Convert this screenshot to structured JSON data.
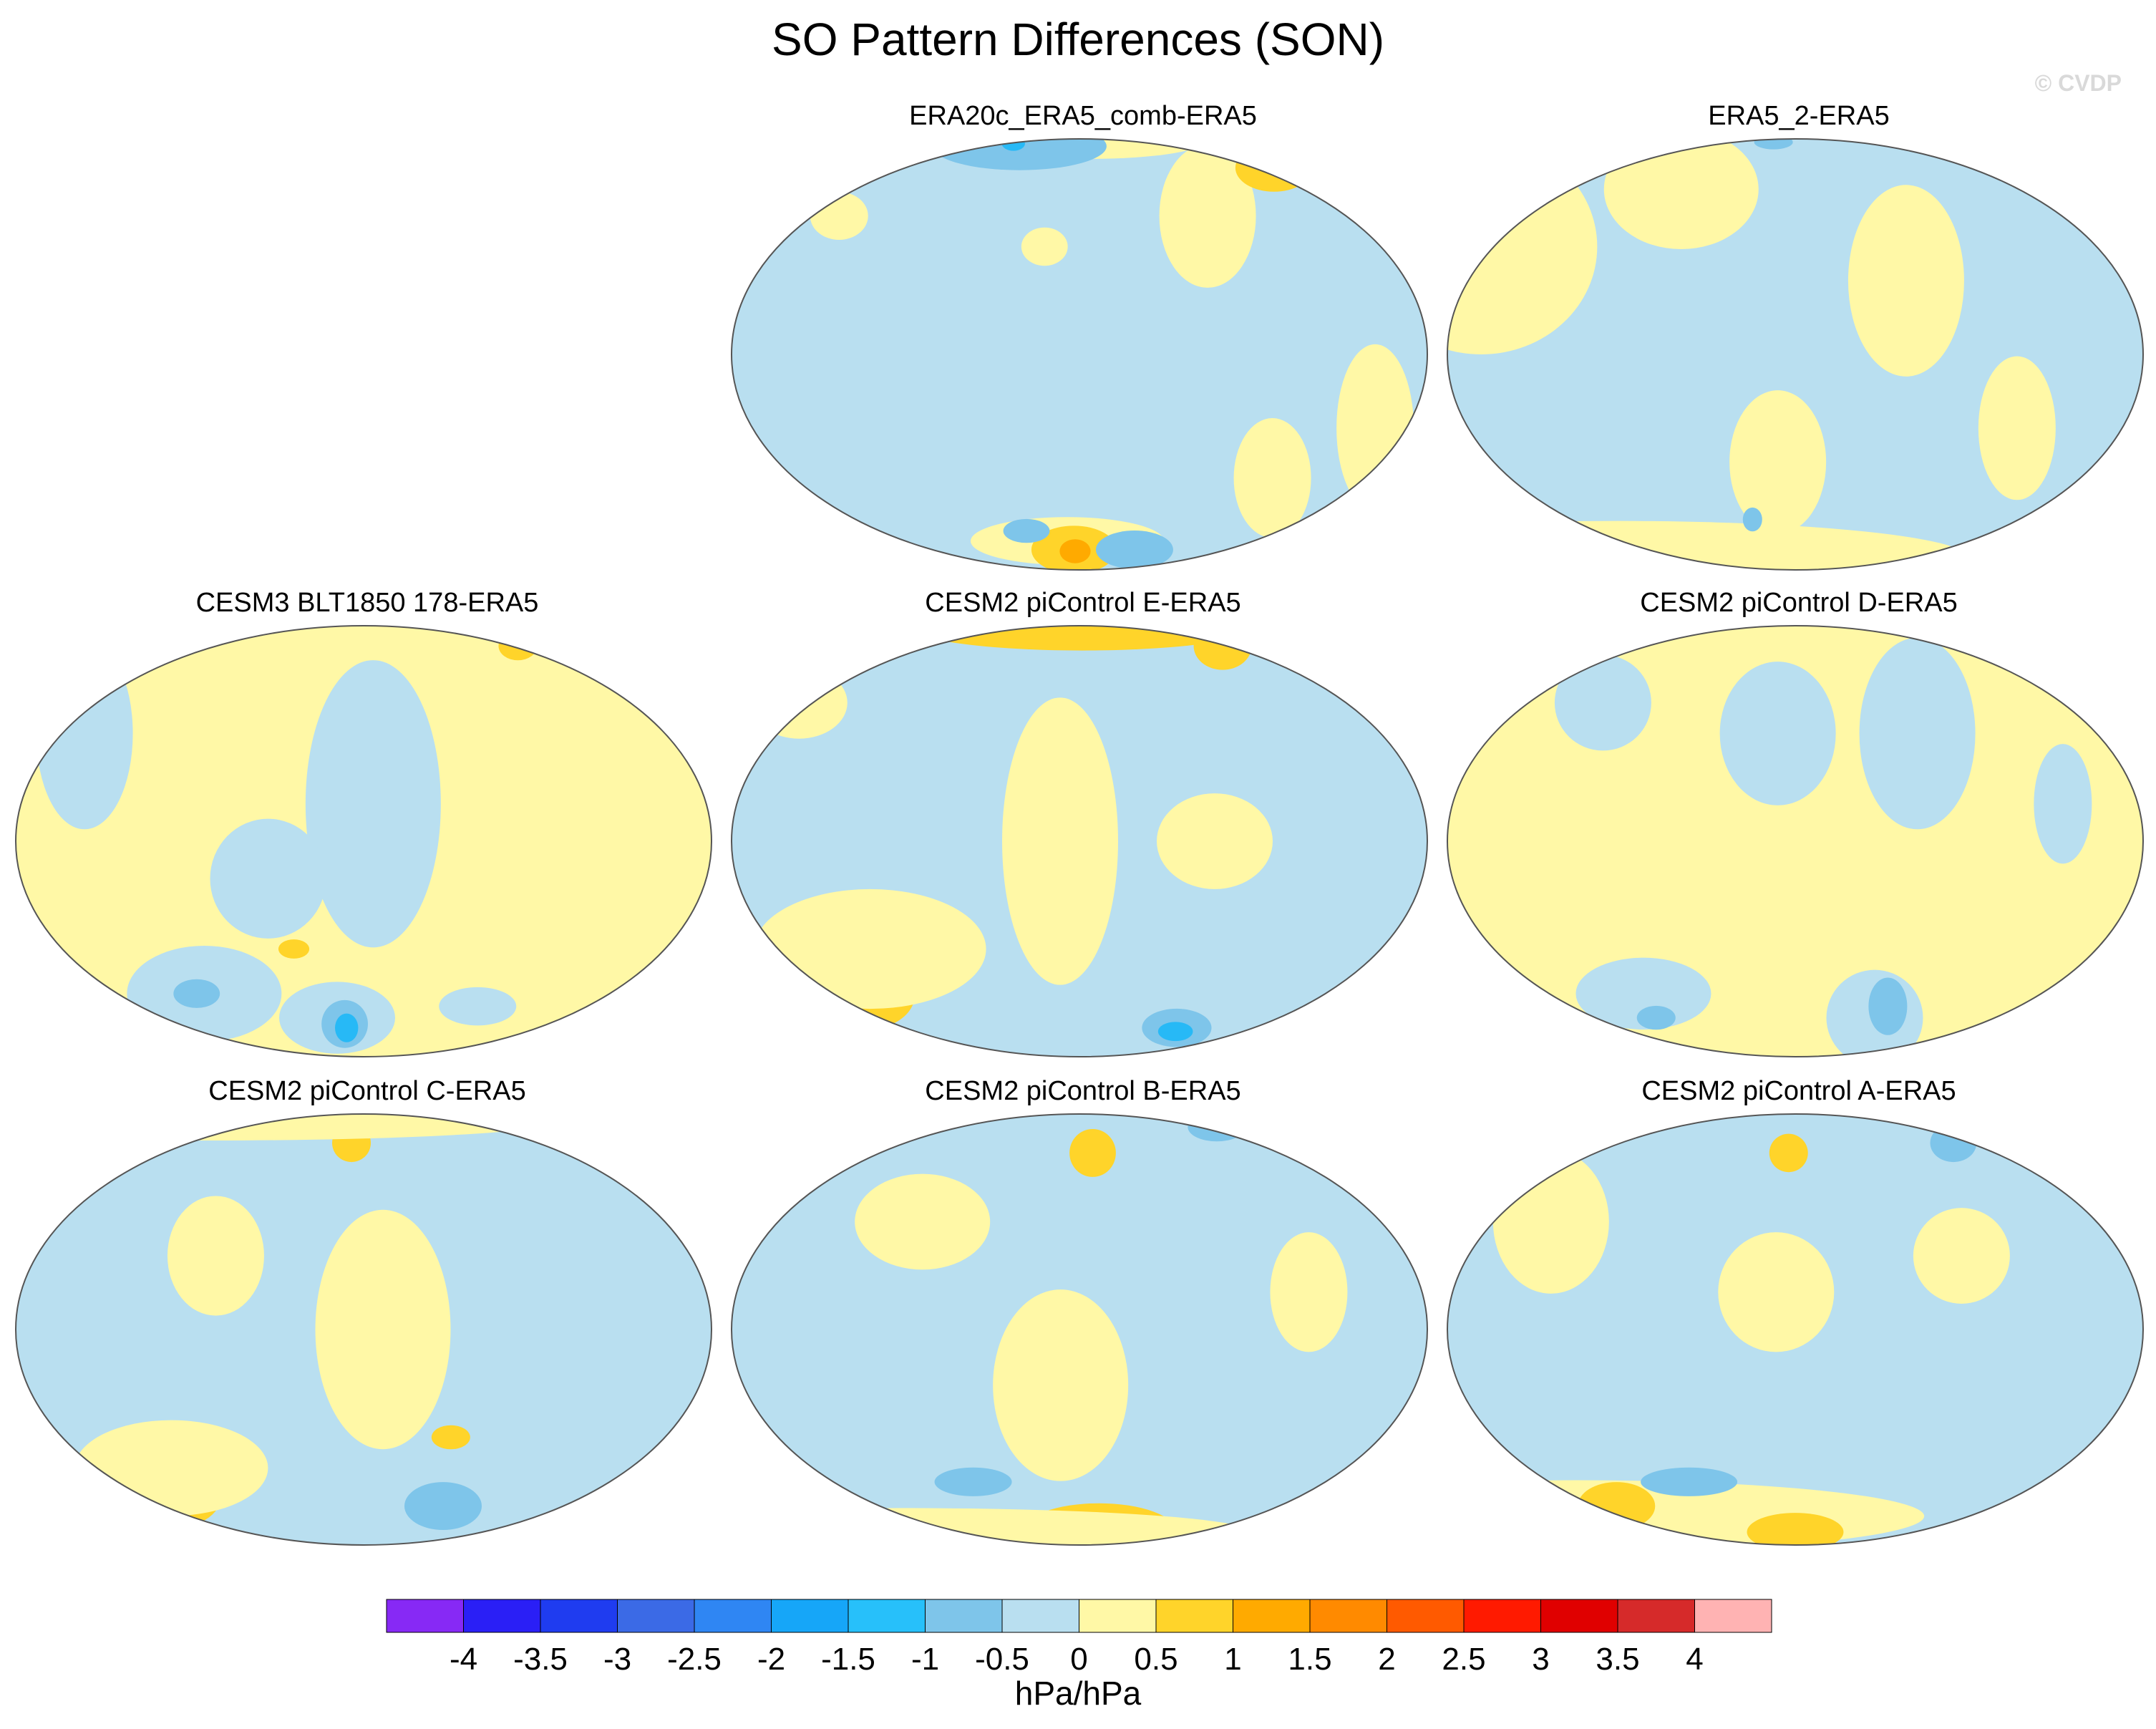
{
  "title": "SO Pattern Differences (SON)",
  "watermark": "© CVDP",
  "panels": [
    {
      "title": "ERA20c_ERA5_comb-ERA5",
      "row": 0,
      "col": 1,
      "base": "#b9dff0",
      "blobs": [
        {
          "lon": 170,
          "lat": -60,
          "rx": 50,
          "ry": 10,
          "c": "#fff8a6"
        },
        {
          "lon": 175,
          "lat": -65,
          "rx": 22,
          "ry": 10,
          "c": "#ffd42a"
        },
        {
          "lon": 176,
          "lat": -66,
          "rx": 8,
          "ry": 5,
          "c": "#ffaa00"
        },
        {
          "lon": -20,
          "lat": -20,
          "rx": 20,
          "ry": 35,
          "c": "#fff8a6"
        },
        {
          "lon": -100,
          "lat": 40,
          "rx": 25,
          "ry": 30,
          "c": "#fff8a6"
        },
        {
          "lon": -20,
          "lat": 60,
          "rx": 20,
          "ry": 10,
          "c": "#ffd42a"
        },
        {
          "lon": -160,
          "lat": 85,
          "rx": 60,
          "ry": 8,
          "c": "#fff8a6"
        },
        {
          "lon": 110,
          "lat": 75,
          "rx": 45,
          "ry": 10,
          "c": "#7ec5ea"
        },
        {
          "lon": 95,
          "lat": 78,
          "rx": 6,
          "ry": 3,
          "c": "#27b9f6"
        },
        {
          "lon": -130,
          "lat": -65,
          "rx": 20,
          "ry": 8,
          "c": "#7ec5ea"
        },
        {
          "lon": 140,
          "lat": -55,
          "rx": 12,
          "ry": 5,
          "c": "#7ec5ea"
        },
        {
          "lon": 30,
          "lat": 40,
          "rx": 15,
          "ry": 10,
          "c": "#fff8a6"
        },
        {
          "lon": 160,
          "lat": 30,
          "rx": 12,
          "ry": 8,
          "c": "#fff8a6"
        },
        {
          "lon": -65,
          "lat": -35,
          "rx": 20,
          "ry": 25,
          "c": "#fff8a6"
        }
      ]
    },
    {
      "title": "ERA5_2-ERA5",
      "row": 0,
      "col": 2,
      "base": "#b9dff0",
      "blobs": [
        {
          "lon": 0,
          "lat": 30,
          "rx": 60,
          "ry": 45,
          "c": "#fff8a6"
        },
        {
          "lon": -120,
          "lat": 20,
          "rx": 30,
          "ry": 40,
          "c": "#fff8a6"
        },
        {
          "lon": 170,
          "lat": -30,
          "rx": 25,
          "ry": 30,
          "c": "#fff8a6"
        },
        {
          "lon": 0,
          "lat": -70,
          "rx": 180,
          "ry": 15,
          "c": "#fff8a6"
        },
        {
          "lon": 100,
          "lat": 50,
          "rx": 40,
          "ry": 25,
          "c": "#fff8a6"
        },
        {
          "lon": 150,
          "lat": -50,
          "rx": 5,
          "ry": 5,
          "c": "#7ec5ea"
        },
        {
          "lon": 150,
          "lat": 80,
          "rx": 10,
          "ry": 3,
          "c": "#7ec5ea"
        },
        {
          "lon": -60,
          "lat": -20,
          "rx": 20,
          "ry": 30,
          "c": "#fff8a6"
        }
      ]
    },
    {
      "title": "CESM3 BLT1850 178-ERA5",
      "row": 1,
      "col": 0,
      "base": "#fff8a6",
      "blobs": [
        {
          "lon": -175,
          "lat": 10,
          "rx": 35,
          "ry": 60,
          "c": "#b9dff0"
        },
        {
          "lon": 20,
          "lat": 30,
          "rx": 25,
          "ry": 40,
          "c": "#b9dff0"
        },
        {
          "lon": 75,
          "lat": -45,
          "rx": 40,
          "ry": 20,
          "c": "#b9dff0"
        },
        {
          "lon": 130,
          "lat": -10,
          "rx": 30,
          "ry": 25,
          "c": "#b9dff0"
        },
        {
          "lon": 160,
          "lat": -55,
          "rx": 30,
          "ry": 15,
          "c": "#b9dff0"
        },
        {
          "lon": 165,
          "lat": -58,
          "rx": 12,
          "ry": 10,
          "c": "#7ec5ea"
        },
        {
          "lon": 166,
          "lat": -60,
          "rx": 6,
          "ry": 6,
          "c": "#27b9f6"
        },
        {
          "lon": 70,
          "lat": -45,
          "rx": 12,
          "ry": 6,
          "c": "#7ec5ea"
        },
        {
          "lon": -40,
          "lat": 65,
          "rx": 10,
          "ry": 6,
          "c": "#ffd42a"
        },
        {
          "lon": 140,
          "lat": -30,
          "rx": 8,
          "ry": 4,
          "c": "#ffd42a"
        },
        {
          "lon": -100,
          "lat": -50,
          "rx": 20,
          "ry": 8,
          "c": "#b9dff0"
        }
      ]
    },
    {
      "title": "CESM2 piControl E-ERA5",
      "row": 1,
      "col": 1,
      "base": "#b9dff0",
      "blobs": [
        {
          "lon": -175,
          "lat": 85,
          "rx": 90,
          "ry": 10,
          "c": "#ffd42a"
        },
        {
          "lon": -50,
          "lat": 65,
          "rx": 15,
          "ry": 10,
          "c": "#ffd42a"
        },
        {
          "lon": 170,
          "lat": 0,
          "rx": 30,
          "ry": 60,
          "c": "#fff8a6"
        },
        {
          "lon": 40,
          "lat": -45,
          "rx": 25,
          "ry": 15,
          "c": "#ffd42a"
        },
        {
          "lon": 60,
          "lat": -30,
          "rx": 60,
          "ry": 25,
          "c": "#fff8a6"
        },
        {
          "lon": 5,
          "lat": 40,
          "rx": 25,
          "ry": 15,
          "c": "#fff8a6"
        },
        {
          "lon": -100,
          "lat": -60,
          "rx": 18,
          "ry": 8,
          "c": "#7ec5ea"
        },
        {
          "lon": -98,
          "lat": -62,
          "rx": 9,
          "ry": 4,
          "c": "#27b9f6"
        },
        {
          "lon": -110,
          "lat": 0,
          "rx": 30,
          "ry": 20,
          "c": "#fff8a6"
        }
      ]
    },
    {
      "title": "CESM2 piControl D-ERA5",
      "row": 1,
      "col": 2,
      "base": "#fff8a6",
      "blobs": [
        {
          "lon": 170,
          "lat": 30,
          "rx": 30,
          "ry": 30,
          "c": "#b9dff0"
        },
        {
          "lon": -110,
          "lat": 30,
          "rx": 30,
          "ry": 40,
          "c": "#b9dff0"
        },
        {
          "lon": 60,
          "lat": 40,
          "rx": 25,
          "ry": 20,
          "c": "#b9dff0"
        },
        {
          "lon": 80,
          "lat": -45,
          "rx": 35,
          "ry": 15,
          "c": "#b9dff0"
        },
        {
          "lon": -120,
          "lat": -55,
          "rx": 25,
          "ry": 20,
          "c": "#b9dff0"
        },
        {
          "lon": -115,
          "lat": -50,
          "rx": 10,
          "ry": 12,
          "c": "#7ec5ea"
        },
        {
          "lon": 75,
          "lat": -55,
          "rx": 10,
          "ry": 5,
          "c": "#7ec5ea"
        },
        {
          "lon": -40,
          "lat": 10,
          "rx": 15,
          "ry": 25,
          "c": "#b9dff0"
        }
      ]
    },
    {
      "title": "CESM2 piControl C-ERA5",
      "row": 2,
      "col": 0,
      "base": "#b9dff0",
      "blobs": [
        {
          "lon": -170,
          "lat": 0,
          "rx": 35,
          "ry": 50,
          "c": "#fff8a6"
        },
        {
          "lon": 40,
          "lat": -50,
          "rx": 30,
          "ry": 15,
          "c": "#ffd42a"
        },
        {
          "lon": 60,
          "lat": -40,
          "rx": 50,
          "ry": 20,
          "c": "#fff8a6"
        },
        {
          "lon": 170,
          "lat": 60,
          "rx": 10,
          "ry": 8,
          "c": "#ffd42a"
        },
        {
          "lon": -120,
          "lat": -55,
          "rx": 20,
          "ry": 10,
          "c": "#7ec5ea"
        },
        {
          "lon": -130,
          "lat": -30,
          "rx": 10,
          "ry": 5,
          "c": "#ffd42a"
        },
        {
          "lon": 0,
          "lat": 75,
          "rx": 180,
          "ry": 8,
          "c": "#fff8a6"
        },
        {
          "lon": 100,
          "lat": 20,
          "rx": 25,
          "ry": 25,
          "c": "#fff8a6"
        }
      ]
    },
    {
      "title": "CESM2 piControl B-ERA5",
      "row": 2,
      "col": 1,
      "base": "#b9dff0",
      "blobs": [
        {
          "lon": 170,
          "lat": -15,
          "rx": 35,
          "ry": 40,
          "c": "#fff8a6"
        },
        {
          "lon": -160,
          "lat": -70,
          "rx": 40,
          "ry": 12,
          "c": "#ffd42a"
        },
        {
          "lon": 0,
          "lat": -70,
          "rx": 180,
          "ry": 10,
          "c": "#fff8a6"
        },
        {
          "lon": -170,
          "lat": 55,
          "rx": 12,
          "ry": 10,
          "c": "#ffd42a"
        },
        {
          "lon": 90,
          "lat": 30,
          "rx": 35,
          "ry": 20,
          "c": "#fff8a6"
        },
        {
          "lon": 110,
          "lat": -45,
          "rx": 20,
          "ry": 6,
          "c": "#7ec5ea"
        },
        {
          "lon": -40,
          "lat": 70,
          "rx": 15,
          "ry": 6,
          "c": "#7ec5ea"
        },
        {
          "lon": -60,
          "lat": 10,
          "rx": 20,
          "ry": 25,
          "c": "#fff8a6"
        }
      ]
    },
    {
      "title": "CESM2 piControl A-ERA5",
      "row": 2,
      "col": 2,
      "base": "#b9dff0",
      "blobs": [
        {
          "lon": 0,
          "lat": -60,
          "rx": 180,
          "ry": 15,
          "c": "#fff8a6"
        },
        {
          "lon": 45,
          "lat": -55,
          "rx": 20,
          "ry": 10,
          "c": "#ffd42a"
        },
        {
          "lon": 180,
          "lat": -70,
          "rx": 25,
          "ry": 8,
          "c": "#ffd42a"
        },
        {
          "lon": 175,
          "lat": 55,
          "rx": 10,
          "ry": 8,
          "c": "#ffd42a"
        },
        {
          "lon": 110,
          "lat": -45,
          "rx": 25,
          "ry": 6,
          "c": "#7ec5ea"
        },
        {
          "lon": 170,
          "lat": 10,
          "rx": 30,
          "ry": 25,
          "c": "#fff8a6"
        },
        {
          "lon": 40,
          "lat": 30,
          "rx": 30,
          "ry": 30,
          "c": "#fff8a6"
        },
        {
          "lon": -50,
          "lat": 60,
          "rx": 12,
          "ry": 8,
          "c": "#7ec5ea"
        },
        {
          "lon": -90,
          "lat": 20,
          "rx": 25,
          "ry": 20,
          "c": "#fff8a6"
        }
      ]
    }
  ],
  "colorbar": {
    "colors": [
      "#8729f5",
      "#2a1ff6",
      "#1f3cf0",
      "#3b6ae6",
      "#2f86f3",
      "#16a6f8",
      "#27c0fa",
      "#7ec5ea",
      "#b9dff0",
      "#fff8a6",
      "#ffd42a",
      "#ffaa00",
      "#ff8a00",
      "#ff5a00",
      "#ff1a00",
      "#e00000",
      "#d62a2a",
      "#ffb3b3"
    ],
    "labels": [
      "-4",
      "-3.5",
      "-3",
      "-2.5",
      "-2",
      "-1.5",
      "-1",
      "-0.5",
      "0",
      "0.5",
      "1",
      "1.5",
      "2",
      "2.5",
      "3",
      "3.5",
      "4"
    ],
    "units": "hPa/hPa"
  }
}
